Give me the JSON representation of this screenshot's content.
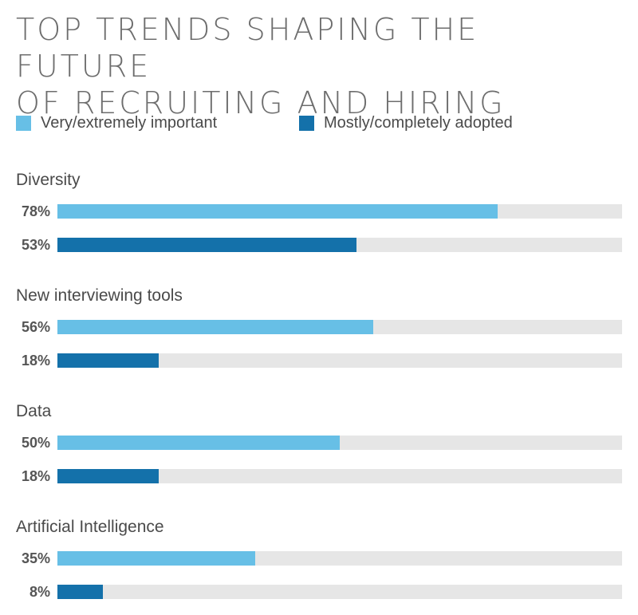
{
  "title_lines": [
    "TOP TRENDS SHAPING THE FUTURE",
    "OF RECRUITING AND HIRING"
  ],
  "colors": {
    "important": "#67bfe6",
    "adopted": "#1471aa",
    "track": "#e6e6e6"
  },
  "legend": [
    {
      "label": "Very/extremely important",
      "color": "#67bfe6"
    },
    {
      "label": "Mostly/completely adopted",
      "color": "#1471aa"
    }
  ],
  "chart_data": {
    "type": "bar",
    "orientation": "horizontal",
    "title": "TOP TRENDS SHAPING THE FUTURE OF RECRUITING AND HIRING",
    "categories": [
      "Diversity",
      "New interviewing tools",
      "Data",
      "Artificial Intelligence"
    ],
    "series": [
      {
        "name": "Very/extremely important",
        "values": [
          78,
          56,
          50,
          35
        ],
        "labels": [
          "78%",
          "56%",
          "50%",
          "35%"
        ]
      },
      {
        "name": "Mostly/completely adopted",
        "values": [
          53,
          18,
          18,
          8
        ],
        "labels": [
          "53%",
          "18%",
          "18%",
          "8%"
        ]
      }
    ],
    "xlim": [
      0,
      100
    ],
    "grid": false,
    "legend_position": "top-left"
  }
}
